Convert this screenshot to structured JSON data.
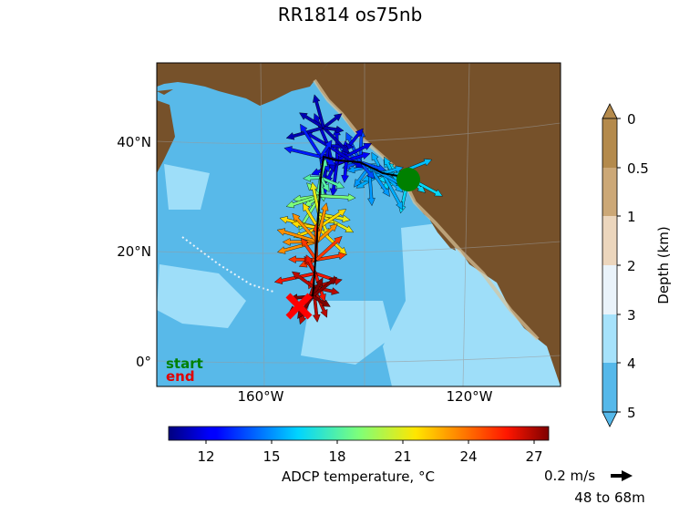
{
  "title": "RR1814 os75nb",
  "map": {
    "lat_labels": [
      "40°N",
      "20°N",
      "0°"
    ],
    "lon_labels": [
      "160°W",
      "120°W"
    ],
    "legend": {
      "start": "start",
      "end": "end",
      "start_color": "#008000",
      "end_color": "#e00000"
    },
    "start_marker": {
      "lon": -121.5,
      "lat": 34.0,
      "color": "#008000"
    },
    "end_marker": {
      "lon": -155.5,
      "lat": 10.5,
      "color": "#ff0000"
    }
  },
  "depth_colorbar": {
    "label": "Depth (km)",
    "ticks": [
      "0",
      "0.5",
      "1",
      "2",
      "3",
      "4",
      "5"
    ],
    "colors": [
      "#b48a4c",
      "#cca877",
      "#ecd6bd",
      "#eaf3fa",
      "#a6e2fb",
      "#55b8ea"
    ]
  },
  "temp_colorbar": {
    "label": "ADCP temperature, °C",
    "ticks": [
      "12",
      "15",
      "18",
      "21",
      "24",
      "27"
    ],
    "range": [
      9.8,
      27.5
    ]
  },
  "scale_arrow": {
    "label": "0.2 m/s",
    "depth_label": "48 to 68m"
  },
  "colors": {
    "land": "#76512a",
    "ocean": "#58b9e9",
    "ocean_shallow": "#a6e2fb"
  }
}
